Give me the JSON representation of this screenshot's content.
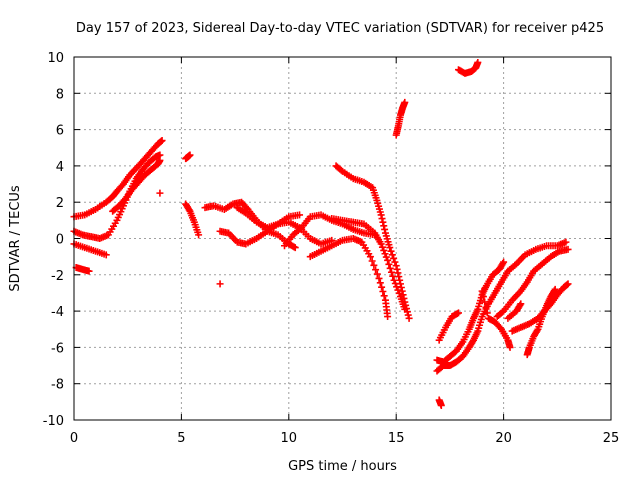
{
  "chart_data": {
    "type": "scatter",
    "title": "Day 157 of 2023, Sidereal Day-to-day VTEC variation (SDTVAR) for receiver p425",
    "xlabel": "GPS time / hours",
    "ylabel": "SDTVAR / TECUs",
    "xlim": [
      0,
      25
    ],
    "ylim": [
      -10,
      10
    ],
    "x_ticks": [
      0,
      5,
      10,
      15,
      20,
      25
    ],
    "y_ticks": [
      -10,
      -8,
      -6,
      -4,
      -2,
      0,
      2,
      4,
      6,
      8,
      10
    ],
    "grid": true,
    "marker": "+",
    "color": "#ff0000",
    "series": [
      {
        "name": "s1",
        "points": [
          [
            0.0,
            1.2
          ],
          [
            0.5,
            1.3
          ],
          [
            1.0,
            1.6
          ],
          [
            1.5,
            2.0
          ],
          [
            1.8,
            2.3
          ],
          [
            2.0,
            2.6
          ],
          [
            2.3,
            3.0
          ],
          [
            2.6,
            3.5
          ],
          [
            3.0,
            4.0
          ],
          [
            3.3,
            4.4
          ],
          [
            3.6,
            4.8
          ],
          [
            3.9,
            5.2
          ],
          [
            4.1,
            5.4
          ]
        ]
      },
      {
        "name": "s2",
        "points": [
          [
            0.0,
            0.4
          ],
          [
            0.4,
            0.2
          ],
          [
            0.8,
            0.1
          ],
          [
            1.2,
            0.0
          ],
          [
            1.6,
            0.2
          ],
          [
            2.0,
            1.0
          ],
          [
            2.3,
            1.8
          ],
          [
            2.6,
            2.6
          ],
          [
            2.9,
            3.3
          ],
          [
            3.2,
            3.8
          ],
          [
            3.5,
            4.2
          ],
          [
            3.8,
            4.5
          ],
          [
            4.0,
            4.6
          ]
        ]
      },
      {
        "name": "s3",
        "points": [
          [
            0.0,
            -0.3
          ],
          [
            0.5,
            -0.5
          ],
          [
            1.0,
            -0.7
          ],
          [
            1.5,
            -0.9
          ]
        ]
      },
      {
        "name": "s4",
        "points": [
          [
            0.1,
            -1.6
          ],
          [
            0.4,
            -1.7
          ],
          [
            0.7,
            -1.8
          ]
        ]
      },
      {
        "name": "s5",
        "points": [
          [
            1.8,
            1.5
          ],
          [
            2.1,
            1.8
          ],
          [
            2.4,
            2.2
          ],
          [
            2.7,
            2.7
          ],
          [
            3.0,
            3.1
          ],
          [
            3.3,
            3.5
          ],
          [
            3.6,
            3.8
          ],
          [
            3.9,
            4.1
          ],
          [
            4.0,
            4.3
          ]
        ]
      },
      {
        "name": "s6",
        "points": [
          [
            4.0,
            2.5
          ]
        ]
      },
      {
        "name": "s7",
        "points": [
          [
            5.2,
            4.4
          ],
          [
            5.3,
            4.5
          ],
          [
            5.4,
            4.6
          ]
        ]
      },
      {
        "name": "s8",
        "points": [
          [
            5.2,
            1.9
          ],
          [
            5.4,
            1.5
          ],
          [
            5.6,
            0.9
          ],
          [
            5.8,
            0.2
          ]
        ]
      },
      {
        "name": "s9",
        "points": [
          [
            6.8,
            -2.5
          ]
        ]
      },
      {
        "name": "s10",
        "points": [
          [
            6.1,
            1.7
          ],
          [
            6.5,
            1.8
          ],
          [
            7.0,
            1.6
          ],
          [
            7.4,
            1.9
          ],
          [
            7.8,
            2.0
          ],
          [
            8.1,
            1.6
          ],
          [
            8.5,
            1.0
          ],
          [
            9.0,
            0.4
          ],
          [
            9.5,
            0.2
          ],
          [
            10.0,
            -0.3
          ],
          [
            10.3,
            -0.5
          ]
        ]
      },
      {
        "name": "s11",
        "points": [
          [
            6.8,
            0.4
          ],
          [
            7.2,
            0.3
          ],
          [
            7.6,
            -0.2
          ],
          [
            8.0,
            -0.3
          ],
          [
            8.5,
            0.0
          ],
          [
            9.0,
            0.4
          ],
          [
            9.5,
            0.8
          ],
          [
            10.0,
            1.2
          ],
          [
            10.5,
            1.3
          ]
        ]
      },
      {
        "name": "s12",
        "points": [
          [
            7.6,
            1.7
          ],
          [
            8.0,
            1.4
          ],
          [
            8.5,
            0.9
          ],
          [
            9.0,
            0.6
          ],
          [
            9.5,
            0.8
          ],
          [
            10.0,
            0.9
          ],
          [
            10.5,
            0.6
          ],
          [
            11.0,
            0.0
          ],
          [
            11.5,
            -0.3
          ],
          [
            12.0,
            -0.1
          ]
        ]
      },
      {
        "name": "s13",
        "points": [
          [
            9.8,
            -0.4
          ],
          [
            10.2,
            0.2
          ],
          [
            10.6,
            0.6
          ],
          [
            11.0,
            1.2
          ],
          [
            11.5,
            1.3
          ],
          [
            12.0,
            1.0
          ],
          [
            12.5,
            0.8
          ],
          [
            13.0,
            0.5
          ],
          [
            13.5,
            0.3
          ],
          [
            14.0,
            0.2
          ]
        ]
      },
      {
        "name": "s14",
        "points": [
          [
            11.0,
            -1.0
          ],
          [
            11.5,
            -0.7
          ],
          [
            12.0,
            -0.4
          ],
          [
            12.5,
            -0.1
          ],
          [
            13.0,
            0.0
          ],
          [
            13.4,
            -0.2
          ],
          [
            13.8,
            -1.0
          ],
          [
            14.2,
            -2.2
          ],
          [
            14.5,
            -3.4
          ],
          [
            14.6,
            -4.3
          ]
        ]
      },
      {
        "name": "s15",
        "points": [
          [
            12.2,
            4.0
          ],
          [
            12.5,
            3.7
          ],
          [
            13.0,
            3.3
          ],
          [
            13.5,
            3.1
          ],
          [
            13.9,
            2.8
          ],
          [
            14.1,
            2.1
          ],
          [
            14.3,
            1.3
          ],
          [
            14.5,
            0.3
          ],
          [
            14.7,
            -0.5
          ],
          [
            15.0,
            -1.5
          ],
          [
            15.2,
            -2.5
          ],
          [
            15.4,
            -3.5
          ],
          [
            15.6,
            -4.4
          ]
        ]
      },
      {
        "name": "s16",
        "points": [
          [
            12.0,
            1.1
          ],
          [
            12.5,
            1.0
          ],
          [
            13.0,
            0.9
          ],
          [
            13.5,
            0.8
          ],
          [
            14.0,
            0.3
          ],
          [
            14.3,
            -0.3
          ],
          [
            14.6,
            -1.2
          ],
          [
            14.9,
            -2.3
          ],
          [
            15.2,
            -3.2
          ],
          [
            15.4,
            -3.9
          ]
        ]
      },
      {
        "name": "s17",
        "points": [
          [
            15.0,
            5.7
          ],
          [
            15.1,
            6.2
          ],
          [
            15.2,
            6.8
          ],
          [
            15.3,
            7.2
          ],
          [
            15.4,
            7.5
          ]
        ]
      },
      {
        "name": "s18",
        "points": [
          [
            16.9,
            -6.7
          ],
          [
            17.2,
            -6.8
          ],
          [
            17.5,
            -6.5
          ],
          [
            17.8,
            -6.2
          ],
          [
            18.1,
            -5.7
          ],
          [
            18.4,
            -5.0
          ],
          [
            18.6,
            -4.4
          ],
          [
            18.8,
            -3.9
          ],
          [
            19.0,
            -3.1
          ],
          [
            19.2,
            -2.6
          ],
          [
            19.5,
            -2.0
          ],
          [
            19.8,
            -1.7
          ],
          [
            20.0,
            -1.3
          ]
        ]
      },
      {
        "name": "s19",
        "points": [
          [
            16.9,
            -7.3
          ],
          [
            17.2,
            -7.0
          ],
          [
            17.5,
            -7.0
          ],
          [
            17.8,
            -6.8
          ],
          [
            18.1,
            -6.5
          ],
          [
            18.4,
            -6.0
          ],
          [
            18.6,
            -5.6
          ],
          [
            18.8,
            -5.1
          ],
          [
            19.0,
            -4.3
          ],
          [
            19.3,
            -3.6
          ],
          [
            19.6,
            -3.0
          ],
          [
            19.9,
            -2.4
          ],
          [
            20.2,
            -1.8
          ],
          [
            20.6,
            -1.4
          ],
          [
            21.0,
            -0.9
          ],
          [
            21.5,
            -0.6
          ],
          [
            22.0,
            -0.4
          ],
          [
            22.5,
            -0.4
          ],
          [
            22.9,
            -0.2
          ]
        ]
      },
      {
        "name": "s20",
        "points": [
          [
            17.0,
            -8.9
          ],
          [
            17.1,
            -9.2
          ]
        ]
      },
      {
        "name": "s21",
        "points": [
          [
            17.0,
            -5.6
          ],
          [
            17.3,
            -4.9
          ],
          [
            17.6,
            -4.3
          ],
          [
            17.9,
            -4.1
          ]
        ]
      },
      {
        "name": "s22",
        "points": [
          [
            17.9,
            9.3
          ],
          [
            18.2,
            9.1
          ],
          [
            18.5,
            9.2
          ],
          [
            18.7,
            9.4
          ],
          [
            18.8,
            9.7
          ]
        ]
      },
      {
        "name": "s23",
        "points": [
          [
            19.0,
            -2.9
          ],
          [
            19.3,
            -4.4
          ],
          [
            19.6,
            -4.6
          ],
          [
            19.9,
            -5.0
          ],
          [
            20.2,
            -5.6
          ],
          [
            20.3,
            -6.0
          ]
        ]
      },
      {
        "name": "s24",
        "points": [
          [
            19.7,
            -4.3
          ],
          [
            20.0,
            -4.0
          ],
          [
            20.4,
            -3.4
          ],
          [
            20.8,
            -2.9
          ],
          [
            21.1,
            -2.4
          ],
          [
            21.4,
            -1.8
          ],
          [
            21.8,
            -1.4
          ],
          [
            22.2,
            -1.0
          ],
          [
            22.6,
            -0.7
          ],
          [
            23.0,
            -0.6
          ]
        ]
      },
      {
        "name": "s25",
        "points": [
          [
            20.4,
            -5.1
          ],
          [
            20.8,
            -4.9
          ],
          [
            21.2,
            -4.7
          ],
          [
            21.6,
            -4.4
          ],
          [
            21.9,
            -4.0
          ],
          [
            22.2,
            -3.6
          ],
          [
            22.5,
            -3.1
          ],
          [
            22.8,
            -2.7
          ],
          [
            23.0,
            -2.5
          ]
        ]
      },
      {
        "name": "s26",
        "points": [
          [
            21.1,
            -6.4
          ],
          [
            21.2,
            -6.0
          ],
          [
            21.4,
            -5.4
          ],
          [
            21.6,
            -5.0
          ],
          [
            21.8,
            -4.3
          ],
          [
            22.0,
            -3.7
          ],
          [
            22.2,
            -3.2
          ],
          [
            22.4,
            -2.8
          ]
        ]
      },
      {
        "name": "s27",
        "points": [
          [
            20.2,
            -4.4
          ],
          [
            20.6,
            -4.0
          ],
          [
            20.8,
            -3.6
          ]
        ]
      }
    ]
  }
}
